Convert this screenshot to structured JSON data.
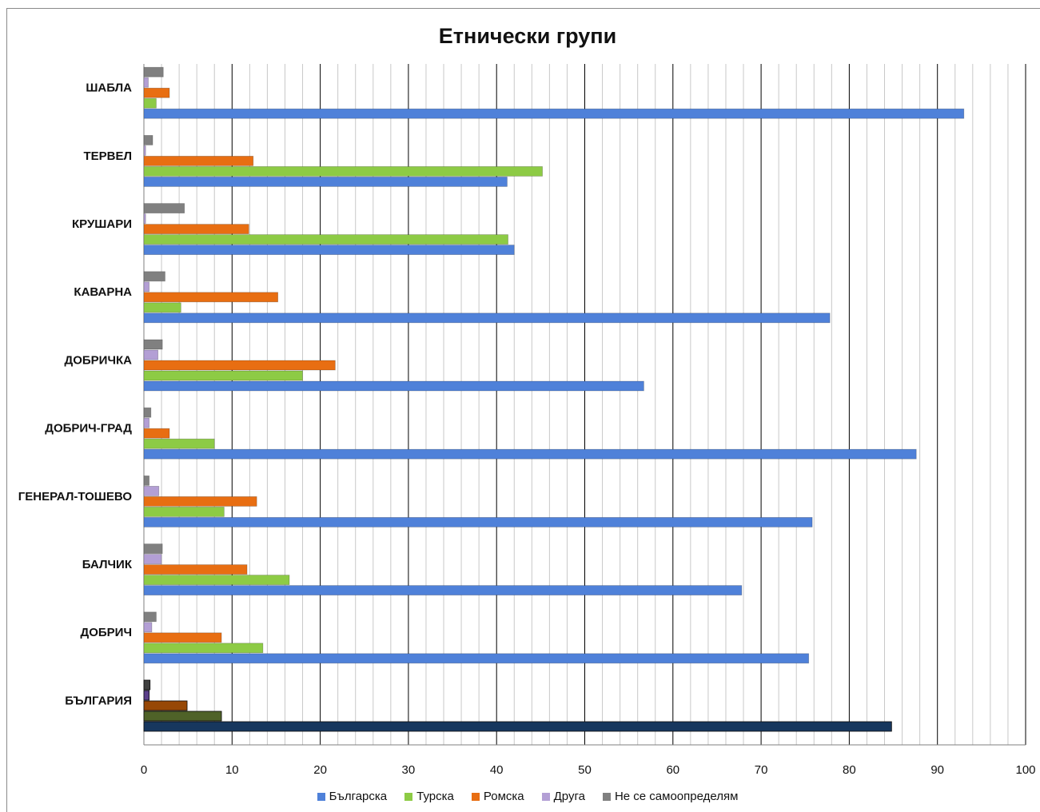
{
  "chart_data": {
    "type": "bar",
    "orientation": "horizontal",
    "title": "Етнически групи",
    "categories": [
      "БЪЛГАРИЯ",
      "ДОБРИЧ",
      "БАЛЧИК",
      "ГЕНЕРАЛ-ТОШЕВО",
      "ДОБРИЧ-ГРАД",
      "ДОБРИЧКА",
      "КАВАРНА",
      "КРУШАРИ",
      "ТЕРВЕЛ",
      "ШАБЛА"
    ],
    "series": [
      {
        "name": "Българска",
        "color": "#4f81d9",
        "values": [
          84.8,
          75.4,
          67.8,
          75.8,
          87.6,
          56.7,
          77.8,
          42.0,
          41.2,
          93.0
        ]
      },
      {
        "name": "Турска",
        "color": "#8dcb45",
        "values": [
          8.8,
          13.5,
          16.5,
          9.1,
          8.0,
          18.0,
          4.2,
          41.3,
          45.2,
          1.4
        ]
      },
      {
        "name": "Ромска",
        "color": "#e86e12",
        "values": [
          4.9,
          8.8,
          11.7,
          12.8,
          2.9,
          21.7,
          15.2,
          11.9,
          12.4,
          2.9
        ]
      },
      {
        "name": "Друга",
        "color": "#b39fd5",
        "values": [
          0.6,
          0.9,
          2.0,
          1.7,
          0.6,
          1.6,
          0.6,
          0.2,
          0.2,
          0.5
        ]
      },
      {
        "name": "Не се самоопределям",
        "color": "#808080",
        "values": [
          0.7,
          1.4,
          2.1,
          0.6,
          0.8,
          2.1,
          2.4,
          4.6,
          1.0,
          2.2
        ]
      }
    ],
    "highlight_category": "БЪЛГАРИЯ",
    "highlight_colors": [
      "#17375e",
      "#4f6228",
      "#974806",
      "#5b3f8a",
      "#404040"
    ],
    "xlim": [
      0,
      100
    ],
    "xticks": [
      0,
      10,
      20,
      30,
      40,
      50,
      60,
      70,
      80,
      90,
      100
    ],
    "minor_step": 2,
    "grid": true,
    "legend_position": "bottom"
  }
}
